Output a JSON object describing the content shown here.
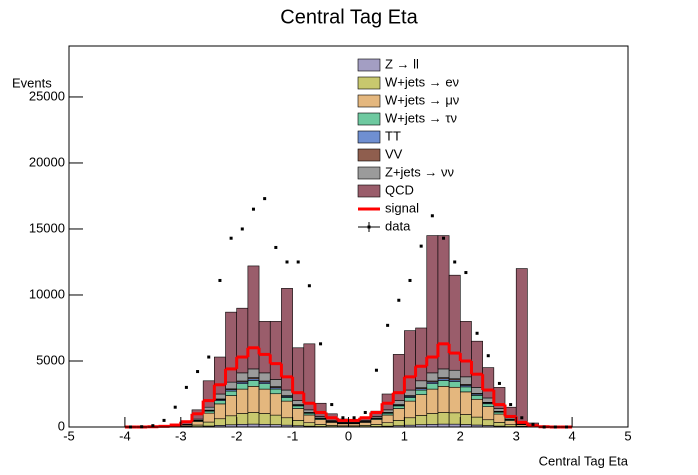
{
  "chart_data": {
    "type": "stacked-histogram",
    "title": "Central Tag Eta",
    "x_label": "Central Tag Eta",
    "y_label": "Events",
    "xlim": [
      -5,
      5
    ],
    "xticks": [
      -5,
      -4,
      -3,
      -2,
      -1,
      0,
      1,
      2,
      3,
      4,
      5
    ],
    "ylim": [
      0,
      28860
    ],
    "yticks": [
      0,
      5000,
      10000,
      15000,
      20000,
      25000
    ],
    "bins": [
      -4,
      -3.8,
      -3.6,
      -3.4,
      -3.2,
      -3,
      -2.8,
      -2.6,
      -2.4,
      -2.2,
      -2,
      -1.8,
      -1.6,
      -1.4,
      -1.2,
      -1,
      -0.8,
      -0.6,
      -0.4,
      -0.2,
      0,
      0.2,
      0.4,
      0.6,
      0.8,
      1,
      1.2,
      1.4,
      1.6,
      1.8,
      2,
      2.2,
      2.4,
      2.6,
      2.8,
      3,
      3.2,
      3.4,
      3.6,
      3.8,
      4
    ],
    "series": [
      {
        "name": "Z → ll",
        "color": "#a39ec3",
        "values": [
          0,
          0,
          0,
          0,
          3,
          10,
          30,
          75,
          125,
          170,
          205,
          220,
          205,
          180,
          140,
          100,
          65,
          40,
          25,
          18,
          18,
          25,
          40,
          65,
          100,
          140,
          175,
          205,
          220,
          215,
          190,
          150,
          110,
          70,
          35,
          13,
          3,
          0,
          0,
          0
        ]
      },
      {
        "name": "W+jets → eν",
        "color": "#c8c86e",
        "values": [
          0,
          0,
          0,
          0,
          10,
          40,
          120,
          300,
          500,
          680,
          820,
          880,
          820,
          720,
          560,
          400,
          260,
          160,
          100,
          70,
          70,
          100,
          160,
          260,
          400,
          560,
          700,
          820,
          880,
          860,
          760,
          600,
          440,
          280,
          140,
          50,
          10,
          0,
          0,
          0
        ]
      },
      {
        "name": "W+jets → μν",
        "color": "#e4b77e",
        "values": [
          0,
          0,
          0,
          0,
          23,
          90,
          270,
          675,
          1125,
          1530,
          1845,
          1980,
          1845,
          1620,
          1260,
          900,
          585,
          360,
          225,
          158,
          158,
          225,
          360,
          585,
          900,
          1260,
          1575,
          1845,
          1980,
          1935,
          1710,
          1350,
          990,
          630,
          315,
          113,
          23,
          0,
          0,
          0
        ]
      },
      {
        "name": "W+jets → τν",
        "color": "#6ec9a0",
        "values": [
          0,
          0,
          0,
          0,
          5,
          20,
          60,
          150,
          250,
          340,
          410,
          440,
          410,
          360,
          280,
          200,
          130,
          80,
          50,
          35,
          35,
          50,
          80,
          130,
          200,
          280,
          350,
          410,
          440,
          430,
          380,
          300,
          220,
          140,
          70,
          25,
          5,
          0,
          0,
          0
        ]
      },
      {
        "name": "TT",
        "color": "#6f8fd1",
        "values": [
          0,
          0,
          0,
          0,
          2,
          6,
          18,
          45,
          75,
          102,
          123,
          132,
          123,
          108,
          84,
          60,
          39,
          24,
          15,
          11,
          11,
          15,
          24,
          39,
          60,
          84,
          105,
          123,
          132,
          129,
          114,
          90,
          66,
          42,
          21,
          8,
          2,
          0,
          0,
          0
        ]
      },
      {
        "name": "VV",
        "color": "#8f5e4e",
        "values": [
          0,
          0,
          0,
          0,
          1,
          4,
          12,
          30,
          50,
          68,
          82,
          88,
          82,
          72,
          56,
          40,
          26,
          16,
          10,
          7,
          7,
          10,
          16,
          26,
          40,
          56,
          70,
          82,
          88,
          86,
          76,
          60,
          44,
          28,
          14,
          5,
          1,
          0,
          0,
          0
        ]
      },
      {
        "name": "Z+jets → νν",
        "color": "#9b9b9b",
        "values": [
          0,
          0,
          0,
          0,
          8,
          30,
          90,
          225,
          375,
          510,
          615,
          660,
          615,
          540,
          420,
          300,
          195,
          120,
          75,
          53,
          53,
          75,
          120,
          195,
          300,
          420,
          525,
          615,
          660,
          645,
          570,
          450,
          330,
          210,
          105,
          38,
          8,
          0,
          0,
          0
        ]
      },
      {
        "name": "QCD",
        "color": "#9a5d6b",
        "values": [
          0,
          0,
          0,
          0,
          50,
          200,
          700,
          2000,
          2800,
          5300,
          4900,
          7800,
          3900,
          4400,
          7700,
          4000,
          5000,
          1000,
          500,
          250,
          150,
          200,
          400,
          1200,
          3500,
          4500,
          4000,
          10400,
          10100,
          7200,
          4200,
          3500,
          2300,
          1600,
          800,
          11750,
          250,
          50,
          0,
          0
        ]
      }
    ],
    "signal": {
      "name": "signal",
      "color": "#ff0000",
      "values": [
        0,
        0,
        20,
        50,
        150,
        400,
        1000,
        2000,
        3200,
        4400,
        5300,
        6000,
        5500,
        4800,
        3800,
        2600,
        1800,
        1100,
        700,
        500,
        500,
        700,
        1100,
        1800,
        2600,
        3800,
        4600,
        5300,
        6300,
        5600,
        5000,
        4000,
        2800,
        1700,
        800,
        350,
        100,
        20,
        0,
        0
      ]
    },
    "data": {
      "name": "data",
      "color": "#000000",
      "values": [
        0,
        20,
        100,
        500,
        1500,
        3000,
        4200,
        5300,
        11100,
        14300,
        15000,
        16500,
        17300,
        13600,
        12500,
        12500,
        10700,
        6300,
        1700,
        700,
        700,
        1100,
        4300,
        7700,
        9600,
        11100,
        13700,
        16000,
        14300,
        12500,
        11700,
        7100,
        5400,
        3300,
        1700,
        700,
        200,
        0,
        0,
        0
      ]
    }
  }
}
